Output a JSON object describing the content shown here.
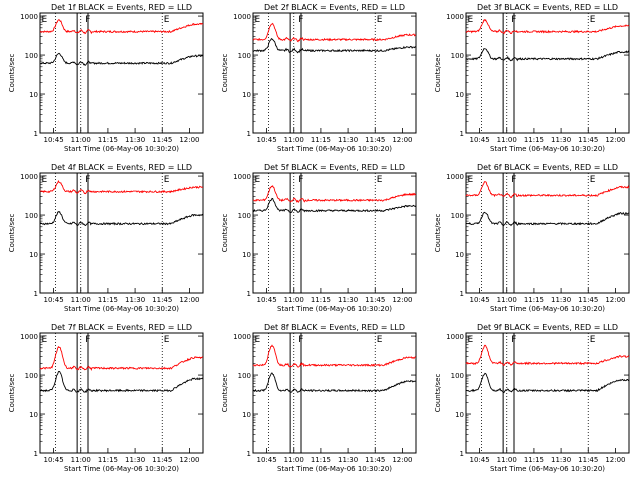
{
  "chart_data": {
    "type": "line",
    "panel_common": {
      "xlabel": "Start Time (06-May-06 10:30:20)",
      "ylabel": "Counts/sec",
      "x_ticks": [
        "10:45",
        "11:00",
        "11:15",
        "11:30",
        "11:45",
        "12:00"
      ],
      "x_tick_minutes": [
        45,
        60,
        75,
        90,
        105,
        120
      ],
      "x_range_minutes": [
        37.5,
        127.5
      ],
      "y_scale": "log",
      "y_ticks": [
        "1",
        "10",
        "100",
        "1000"
      ],
      "y_range": [
        1,
        1200
      ],
      "dotted_markers_minutes": [
        46,
        60,
        105
      ],
      "solid_markers_minutes": [
        58,
        64
      ],
      "marker_letters": [
        "E",
        "F",
        "E"
      ],
      "series_colors": {
        "Events": "#000000",
        "LLD": "#ff0000"
      }
    },
    "panels": [
      {
        "title": "Det 1f BLACK = Events, RED = LLD",
        "events_base": 62,
        "events_peak": 110,
        "events_end": 95,
        "lld_base": 400,
        "lld_peak": 800,
        "lld_end": 620,
        "peak_minute": 48
      },
      {
        "title": "Det 2f BLACK = Events, RED = LLD",
        "events_base": 130,
        "events_peak": 260,
        "events_end": 160,
        "lld_base": 250,
        "lld_peak": 650,
        "lld_end": 330,
        "peak_minute": 48
      },
      {
        "title": "Det 3f BLACK = Events, RED = LLD",
        "events_base": 80,
        "events_peak": 150,
        "events_end": 120,
        "lld_base": 400,
        "lld_peak": 800,
        "lld_end": 560,
        "peak_minute": 48
      },
      {
        "title": "Det 4f BLACK = Events, RED = LLD",
        "events_base": 60,
        "events_peak": 120,
        "events_end": 100,
        "lld_base": 400,
        "lld_peak": 720,
        "lld_end": 520,
        "peak_minute": 48
      },
      {
        "title": "Det 5f BLACK = Events, RED = LLD",
        "events_base": 130,
        "events_peak": 260,
        "events_end": 170,
        "lld_base": 240,
        "lld_peak": 560,
        "lld_end": 340,
        "peak_minute": 48
      },
      {
        "title": "Det 6f BLACK = Events, RED = LLD",
        "events_base": 60,
        "events_peak": 120,
        "events_end": 110,
        "lld_base": 320,
        "lld_peak": 700,
        "lld_end": 520,
        "peak_minute": 48
      },
      {
        "title": "Det 7f BLACK = Events, RED = LLD",
        "events_base": 40,
        "events_peak": 120,
        "events_end": 80,
        "lld_base": 150,
        "lld_peak": 520,
        "lld_end": 280,
        "peak_minute": 48
      },
      {
        "title": "Det 8f BLACK = Events, RED = LLD",
        "events_base": 40,
        "events_peak": 110,
        "events_end": 70,
        "lld_base": 180,
        "lld_peak": 560,
        "lld_end": 280,
        "peak_minute": 48
      },
      {
        "title": "Det 9f BLACK = Events, RED = LLD",
        "events_base": 40,
        "events_peak": 110,
        "events_end": 75,
        "lld_base": 200,
        "lld_peak": 560,
        "lld_end": 300,
        "peak_minute": 48
      }
    ]
  }
}
